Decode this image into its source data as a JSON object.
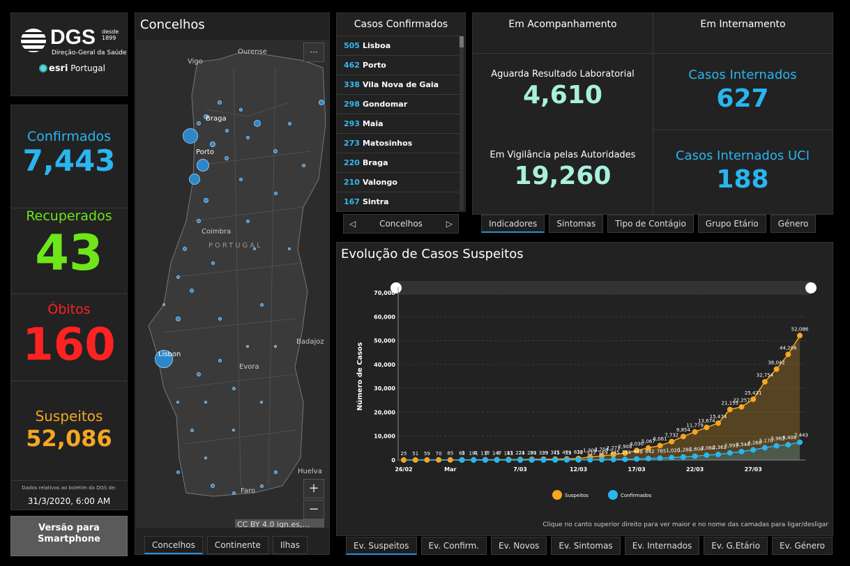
{
  "logo": {
    "big": "DGS",
    "since_a": "desde",
    "since_b": "1899",
    "sub": "Direção-Geral da Saúde",
    "esri": "esri",
    "esri_sub": "Portugal"
  },
  "stats": {
    "confirmed_label": "Confirmados",
    "confirmed_value": "7,443",
    "recovered_label": "Recuperados",
    "recovered_value": "43",
    "deaths_label": "Óbitos",
    "deaths_value": "160",
    "suspects_label": "Suspeitos",
    "suspects_value": "52,086",
    "note": "Dados relativos ao boletim da DGS de:",
    "date": "31/3/2020, 6:00 AM"
  },
  "phone_button": "Versão para Smartphone",
  "map": {
    "title": "Concelhos",
    "menu": "···",
    "zoom_in": "+",
    "zoom_out": "−",
    "attribution": "CC BY 4.0 ign.es,...",
    "places": [
      "Vigo",
      "Ourense",
      "Braga",
      "Porto",
      "Coimbra",
      "PORTUGAL",
      "Lisbon",
      "Evora",
      "Badajoz",
      "Huelva",
      "Faro"
    ],
    "tabs": [
      "Concelhos",
      "Continente",
      "Ilhas"
    ]
  },
  "list": {
    "title": "Casos Confirmados",
    "items": [
      {
        "n": "505",
        "name": "Lisboa"
      },
      {
        "n": "462",
        "name": "Porto"
      },
      {
        "n": "338",
        "name": "Vila Nova de Gaia"
      },
      {
        "n": "298",
        "name": "Gondomar"
      },
      {
        "n": "293",
        "name": "Maia"
      },
      {
        "n": "273",
        "name": "Matosinhos"
      },
      {
        "n": "220",
        "name": "Braga"
      },
      {
        "n": "210",
        "name": "Valongo"
      },
      {
        "n": "167",
        "name": "Sintra"
      }
    ],
    "nav_label": "Concelhos",
    "prev": "◁",
    "next": "▷"
  },
  "indicators": {
    "head_left": "Em Acompanhamento",
    "head_right": "Em Internamento",
    "awaiting_label": "Aguarda Resultado Laboratorial",
    "awaiting_value": "4,610",
    "surveillance_label": "Em Vigilância pelas Autoridades",
    "surveillance_value": "19,260",
    "hosp_label": "Casos Internados",
    "hosp_value": "627",
    "icu_label": "Casos Internados UCI",
    "icu_value": "188",
    "tabs": [
      "Indicadores",
      "Sintomas",
      "Tipo de Contágio",
      "Grupo Etário",
      "Género"
    ]
  },
  "chart": {
    "title": "Evolução de Casos Suspeitos",
    "footer": "Clique no canto superior direito para ver maior e no nome das camadas para ligar/desligar",
    "tabs": [
      "Ev. Suspeitos",
      "Ev. Confirm.",
      "Ev. Novos",
      "Ev. Sintomas",
      "Ev. Internados",
      "Ev. G.Etário",
      "Ev. Género"
    ]
  },
  "colors": {
    "confirmed": "#29b6f0",
    "recovered": "#6ee61a",
    "deaths": "#ff2222",
    "suspects": "#f5a623",
    "teal": "#a8f0dd"
  },
  "chart_data": {
    "type": "line",
    "title": "",
    "ylabel": "Número de Casos",
    "ylim": [
      0,
      70000
    ],
    "yticks": [
      "0",
      "10,000",
      "20,000",
      "30,000",
      "40,000",
      "50,000",
      "60,000",
      "70,000"
    ],
    "xticks": [
      "26/02",
      "Mar",
      "7/03",
      "12/03",
      "17/03",
      "22/03",
      "27/03"
    ],
    "x": [
      "26/02",
      "27/02",
      "28/02",
      "29/02",
      "01/03",
      "02/03",
      "03/03",
      "04/03",
      "05/03",
      "06/03",
      "07/03",
      "08/03",
      "09/03",
      "10/03",
      "11/03",
      "12/03",
      "13/03",
      "14/03",
      "15/03",
      "16/03",
      "17/03",
      "18/03",
      "19/03",
      "20/03",
      "21/03",
      "22/03",
      "23/03",
      "24/03",
      "25/03",
      "26/03",
      "27/03",
      "28/03",
      "29/03",
      "30/03",
      "31/03"
    ],
    "series": [
      {
        "name": "Suspeitos",
        "values": [
          25,
          51,
          59,
          70,
          85,
          85,
          101,
          117,
          147,
          181,
          224,
          281,
          339,
          375,
          471,
          637,
          1308,
          1704,
          2271,
          2908,
          4030,
          5067,
          6061,
          7732,
          9854,
          11779,
          13674,
          15474,
          21155,
          22257,
          25431,
          32754,
          38042,
          44206,
          52086
        ]
      },
      {
        "name": "Confirmados",
        "values": [
          0,
          0,
          0,
          0,
          0,
          2,
          4,
          6,
          9,
          13,
          21,
          30,
          39,
          41,
          59,
          78,
          112,
          169,
          245,
          331,
          448,
          642,
          785,
          1020,
          1280,
          1600,
          2060,
          2362,
          2995,
          3544,
          4268,
          5170,
          5962,
          6408,
          7443
        ]
      }
    ],
    "labels_suspects": [
      "25",
      "51",
      "59",
      "70",
      "85",
      "85",
      "101",
      "117",
      "147",
      "181",
      "224",
      "281",
      "339",
      "375",
      "471",
      "637",
      "1,308",
      "1,704",
      "2,271",
      "2,908",
      "4,030",
      "5,067",
      "6,061",
      "7,732",
      "9,854",
      "11,779",
      "13,674",
      "15,474",
      "21,155",
      "22,257",
      "25,431",
      "32,754",
      "38,042",
      "44,206",
      "52,086"
    ],
    "labels_confirmed": [
      "2",
      "4",
      "6",
      "9",
      "13",
      "21",
      "30",
      "39",
      "41",
      "59",
      "78",
      "112",
      "169",
      "245",
      "331",
      "448",
      "642",
      "785",
      "1,020",
      "1,280",
      "1,600",
      "2,060",
      "2,362",
      "2,995",
      "3,544",
      "4,268",
      "5,170",
      "5,962",
      "6,408",
      "7,443"
    ],
    "legend": "bottom"
  }
}
